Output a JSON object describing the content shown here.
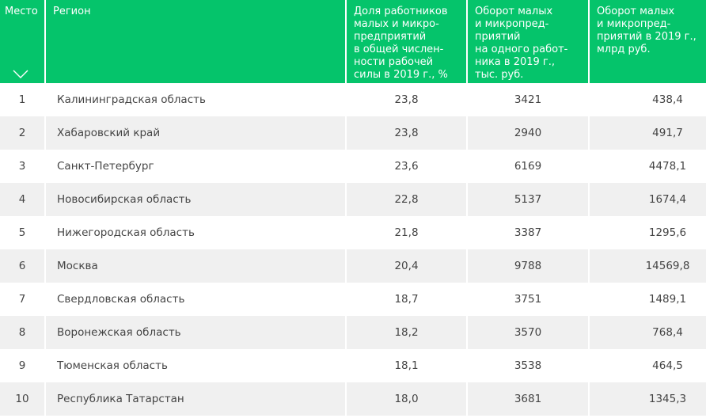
{
  "columns": {
    "place": "Место",
    "region": "Регион",
    "share": "Доля работников\nмалых и микро-\nпредприятий\nв общей числен-\nности рабочей\nсилы в 2019 г., %",
    "per_worker": "Оборот малых\nи микропред-\nприятий\nна одного работ-\nника в 2019 г.,\nтыс. руб.",
    "total": "Оборот малых\nи микропред-\nприятий в 2019 г.,\nмлрд руб."
  },
  "rows": [
    {
      "place": "1",
      "region": "Калининградская область",
      "share": "23,8",
      "per_worker": "3421",
      "total": "438,4"
    },
    {
      "place": "2",
      "region": "Хабаровский край",
      "share": "23,8",
      "per_worker": "2940",
      "total": "491,7"
    },
    {
      "place": "3",
      "region": "Санкт-Петербург",
      "share": "23,6",
      "per_worker": "6169",
      "total": "4478,1"
    },
    {
      "place": "4",
      "region": "Новосибирская область",
      "share": "22,8",
      "per_worker": "5137",
      "total": "1674,4"
    },
    {
      "place": "5",
      "region": "Нижегородская область",
      "share": "21,8",
      "per_worker": "3387",
      "total": "1295,6"
    },
    {
      "place": "6",
      "region": "Москва",
      "share": "20,4",
      "per_worker": "9788",
      "total": "14569,8"
    },
    {
      "place": "7",
      "region": "Свердловская область",
      "share": "18,7",
      "per_worker": "3751",
      "total": "1489,1"
    },
    {
      "place": "8",
      "region": "Воронежская область",
      "share": "18,2",
      "per_worker": "3570",
      "total": "768,4"
    },
    {
      "place": "9",
      "region": "Тюменская область",
      "share": "18,1",
      "per_worker": "3538",
      "total": "464,5"
    },
    {
      "place": "10",
      "region": "Республика Татарстан",
      "share": "18,0",
      "per_worker": "3681",
      "total": "1345,3"
    }
  ],
  "sort_icon": "chevron-down-icon",
  "colors": {
    "header_bg": "#05c46b",
    "stripe": "#f0f0f0",
    "text": "#444444"
  }
}
